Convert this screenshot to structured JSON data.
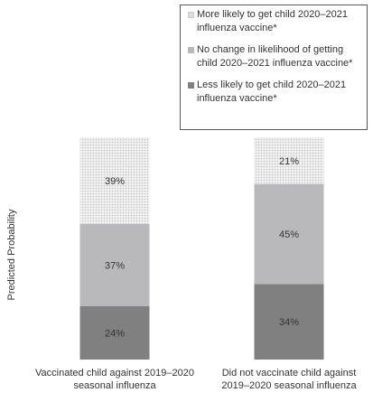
{
  "chart_data": {
    "type": "bar",
    "stacked": true,
    "ylabel": "Predicted Probability",
    "xlabel": "",
    "ylim": [
      0,
      100
    ],
    "categories": [
      "Vaccinated child against 2019–2020 seasonal influenza",
      "Did not vaccinate child against 2019–2020 seasonal influenza"
    ],
    "category_lines": [
      [
        "Vaccinated child against 2019–2020",
        "seasonal influenza"
      ],
      [
        "Did not vaccinate child against",
        "2019–2020 seasonal influenza"
      ]
    ],
    "series": [
      {
        "name": "Less likely to get child 2020–2021 influenza vaccine*",
        "values": [
          24,
          34
        ],
        "labels": [
          "24%",
          "34%"
        ],
        "color": "#808080"
      },
      {
        "name": "No change in likelihood of getting child 2020–2021 influenza vaccine*",
        "values": [
          37,
          45
        ],
        "labels": [
          "37%",
          "45%"
        ],
        "color": "#b9b9bb"
      },
      {
        "name": "More likely to get child 2020–2021 influenza vaccine*",
        "values": [
          39,
          21
        ],
        "labels": [
          "39%",
          "21%"
        ],
        "color": "#efefef",
        "pattern": "dotted"
      }
    ],
    "grid": false,
    "legend_position": "top-right"
  },
  "legend": {
    "items": [
      {
        "key": "more",
        "lines": [
          "More likely to get child 2020–2021",
          "influenza vaccine*"
        ]
      },
      {
        "key": "nochange",
        "lines": [
          "No change in likelihood of getting",
          "child 2020–2021 influenza vaccine*"
        ]
      },
      {
        "key": "less",
        "lines": [
          "Less likely to get child 2020–2021",
          "influenza vaccine*"
        ]
      }
    ]
  }
}
